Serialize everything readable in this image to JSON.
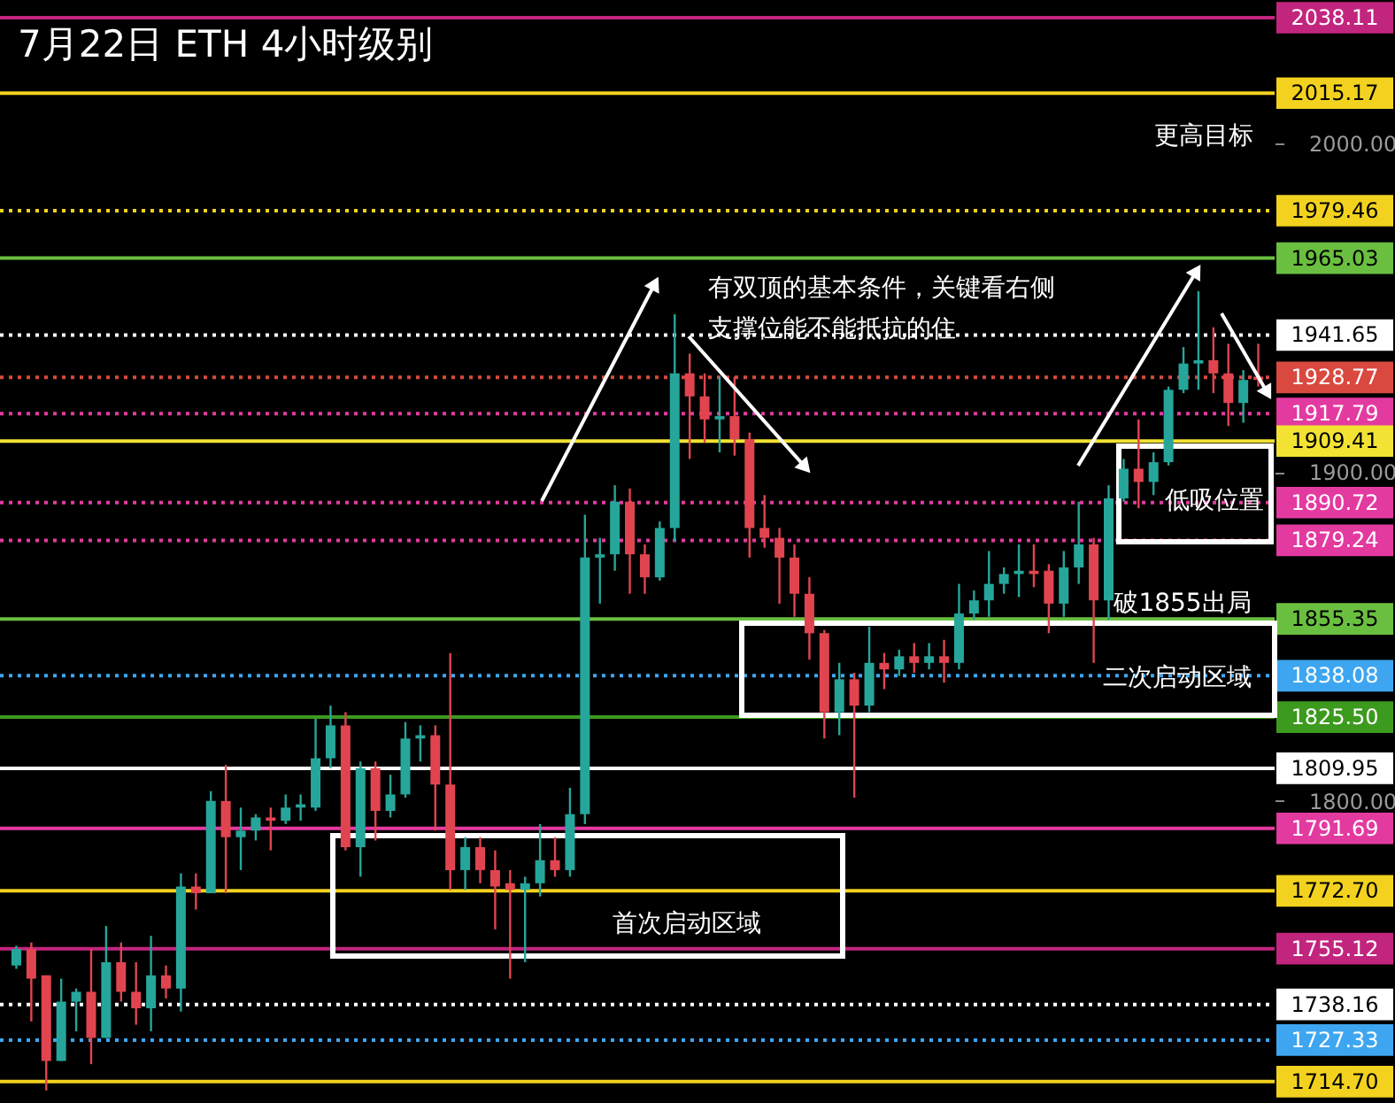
{
  "chart_data": {
    "type": "candlestick",
    "title": "7月22日 ETH 4小时级别",
    "categories": [
      null,
      null,
      null,
      null,
      null,
      null,
      null,
      null,
      null,
      null,
      null,
      null,
      null,
      null,
      null,
      null,
      null,
      null,
      null,
      null,
      null,
      null,
      null,
      null,
      null,
      null,
      null,
      null,
      null,
      null,
      null,
      null,
      null,
      null,
      null,
      null,
      null,
      null,
      null,
      null,
      null,
      null,
      null,
      null,
      null,
      null,
      null,
      null,
      null,
      null,
      null,
      null,
      null,
      null,
      null,
      null,
      null,
      null,
      null,
      null,
      null,
      null,
      null,
      null,
      null,
      null,
      null,
      null,
      null,
      null,
      null,
      null,
      null,
      null,
      null,
      null,
      null,
      null,
      null,
      null,
      null,
      null,
      null,
      null
    ],
    "ohlc": [
      [
        1750,
        1756,
        1749,
        1755
      ],
      [
        1755,
        1757,
        1733,
        1746
      ],
      [
        1747,
        1747,
        1712,
        1721
      ],
      [
        1721,
        1746,
        1721,
        1739
      ],
      [
        1739,
        1743,
        1730,
        1742
      ],
      [
        1742,
        1755,
        1720,
        1728
      ],
      [
        1728,
        1762,
        1728,
        1751
      ],
      [
        1751,
        1757,
        1739,
        1742
      ],
      [
        1742,
        1751,
        1732,
        1737
      ],
      [
        1737,
        1759,
        1730,
        1747
      ],
      [
        1747,
        1750,
        1740,
        1743
      ],
      [
        1743,
        1778,
        1736,
        1774
      ],
      [
        1774,
        1778,
        1767,
        1772
      ],
      [
        1772,
        1803,
        1772,
        1800
      ],
      [
        1800,
        1811,
        1772,
        1789
      ],
      [
        1789,
        1798,
        1779,
        1791
      ],
      [
        1791,
        1796,
        1788,
        1795
      ],
      [
        1795,
        1798,
        1785,
        1794
      ],
      [
        1794,
        1802,
        1793,
        1798
      ],
      [
        1798,
        1802,
        1794,
        1799
      ],
      [
        1798,
        1825,
        1797,
        1813
      ],
      [
        1813,
        1829,
        1810,
        1823
      ],
      [
        1823,
        1827,
        1785,
        1786
      ],
      [
        1786,
        1812,
        1777,
        1810
      ],
      [
        1810,
        1812,
        1788,
        1797
      ],
      [
        1797,
        1808,
        1795,
        1802
      ],
      [
        1802,
        1824,
        1801,
        1819
      ],
      [
        1819,
        1823,
        1812,
        1820
      ],
      [
        1820,
        1823,
        1791,
        1805
      ],
      [
        1805,
        1845,
        1773,
        1779
      ],
      [
        1779,
        1789,
        1773,
        1786
      ],
      [
        1786,
        1789,
        1775,
        1779
      ],
      [
        1779,
        1785,
        1761,
        1774
      ],
      [
        1775,
        1779,
        1746,
        1773
      ],
      [
        1773,
        1777,
        1751,
        1775
      ],
      [
        1775,
        1793,
        1771,
        1782
      ],
      [
        1782,
        1789,
        1777,
        1779
      ],
      [
        1779,
        1804,
        1777,
        1796
      ],
      [
        1796,
        1887,
        1793,
        1874
      ],
      [
        1874,
        1880,
        1860,
        1875
      ],
      [
        1875,
        1896,
        1870,
        1891
      ],
      [
        1891,
        1895,
        1863,
        1875
      ],
      [
        1875,
        1878,
        1863,
        1868
      ],
      [
        1868,
        1885,
        1867,
        1883
      ],
      [
        1883,
        1948,
        1879,
        1930
      ],
      [
        1930,
        1936,
        1904,
        1923
      ],
      [
        1923,
        1930,
        1909,
        1916
      ],
      [
        1916,
        1929,
        1906,
        1917
      ],
      [
        1917,
        1929,
        1905,
        1910
      ],
      [
        1910,
        1912,
        1874,
        1883
      ],
      [
        1883,
        1893,
        1877,
        1880
      ],
      [
        1880,
        1883,
        1860,
        1874
      ],
      [
        1874,
        1878,
        1856,
        1863
      ],
      [
        1863,
        1868,
        1843,
        1851
      ],
      [
        1851,
        1852,
        1819,
        1827
      ],
      [
        1827,
        1842,
        1820,
        1837
      ],
      [
        1837,
        1839,
        1801,
        1829
      ],
      [
        1829,
        1853,
        1827,
        1842
      ],
      [
        1842,
        1845,
        1834,
        1840
      ],
      [
        1840,
        1846,
        1838,
        1844
      ],
      [
        1844,
        1848,
        1839,
        1842
      ],
      [
        1842,
        1848,
        1840,
        1844
      ],
      [
        1844,
        1849,
        1836,
        1842
      ],
      [
        1842,
        1866,
        1840,
        1857
      ],
      [
        1857,
        1864,
        1855,
        1861
      ],
      [
        1861,
        1876,
        1856,
        1866
      ],
      [
        1866,
        1871,
        1863,
        1869
      ],
      [
        1869,
        1878,
        1862,
        1870
      ],
      [
        1870,
        1878,
        1865,
        1869
      ],
      [
        1870,
        1872,
        1851,
        1860
      ],
      [
        1860,
        1876,
        1856,
        1871
      ],
      [
        1871,
        1891,
        1866,
        1878
      ],
      [
        1878,
        1880,
        1842,
        1861
      ],
      [
        1861,
        1896,
        1855,
        1892
      ],
      [
        1892,
        1904,
        1891,
        1901
      ],
      [
        1901,
        1916,
        1889,
        1897
      ],
      [
        1897,
        1906,
        1893,
        1903
      ],
      [
        1903,
        1926,
        1902,
        1925
      ],
      [
        1925,
        1938,
        1924,
        1933
      ],
      [
        1933,
        1955,
        1925,
        1934
      ],
      [
        1934,
        1944,
        1924,
        1930
      ],
      [
        1930,
        1939,
        1914,
        1921
      ],
      [
        1921,
        1931,
        1915,
        1928
      ],
      [
        1929,
        1939,
        1926,
        1928
      ]
    ],
    "ylim": [
      1708.2,
      2043.5
    ],
    "yticks": [
      {
        "value": 1800,
        "label": "1800.00"
      },
      {
        "value": 1900,
        "label": "1900.00"
      },
      {
        "value": 2000,
        "label": "2000.00"
      }
    ],
    "ref_lines": [
      {
        "axis": "y",
        "value": 2038.11,
        "label": "2038.11",
        "color": "#c2257e",
        "line_style": "solid"
      },
      {
        "axis": "y",
        "value": 2015.17,
        "label": "2015.17",
        "color": "#f2d21f",
        "line_style": "solid"
      },
      {
        "axis": "y",
        "value": 1979.46,
        "label": "1979.46",
        "color": "#f2d21f",
        "line_style": "dotted"
      },
      {
        "axis": "y",
        "value": 1965.03,
        "label": "1965.03",
        "color": "#6abf40",
        "line_style": "solid"
      },
      {
        "axis": "y",
        "value": 1941.65,
        "label": "1941.65",
        "color": "#ffffff",
        "line_style": "dotted"
      },
      {
        "axis": "y",
        "value": 1928.77,
        "label": "1928.77",
        "color": "#d9493f",
        "line_style": "dotted"
      },
      {
        "axis": "y",
        "value": 1917.79,
        "label": "1917.79",
        "color": "#e33aa0",
        "line_style": "dotted"
      },
      {
        "axis": "y",
        "value": 1909.41,
        "label": "1909.41",
        "color": "#f2e233",
        "line_style": "solid"
      },
      {
        "axis": "y",
        "value": 1890.72,
        "label": "1890.72",
        "color": "#e33aa0",
        "line_style": "dotted"
      },
      {
        "axis": "y",
        "value": 1879.24,
        "label": "1879.24",
        "color": "#e33aa0",
        "line_style": "dotted"
      },
      {
        "axis": "y",
        "value": 1855.35,
        "label": "1855.35",
        "color": "#6abf40",
        "line_style": "solid"
      },
      {
        "axis": "y",
        "value": 1838.08,
        "label": "1838.08",
        "color": "#3ea6f0",
        "line_style": "dotted"
      },
      {
        "axis": "y",
        "value": 1825.5,
        "label": "1825.50",
        "color": "#3c9a1e",
        "line_style": "solid"
      },
      {
        "axis": "y",
        "value": 1809.95,
        "label": "1809.95",
        "color": "#ffffff",
        "line_style": "solid"
      },
      {
        "axis": "y",
        "value": 1791.69,
        "label": "1791.69",
        "color": "#e33aa0",
        "line_style": "solid"
      },
      {
        "axis": "y",
        "value": 1772.7,
        "label": "1772.70",
        "color": "#f2d21f",
        "line_style": "solid"
      },
      {
        "axis": "y",
        "value": 1755.12,
        "label": "1755.12",
        "color": "#c2257e",
        "line_style": "solid"
      },
      {
        "axis": "y",
        "value": 1738.16,
        "label": "1738.16",
        "color": "#ffffff",
        "line_style": "dotted"
      },
      {
        "axis": "y",
        "value": 1727.33,
        "label": "1727.33",
        "color": "#3ea6f0",
        "line_style": "dotted"
      },
      {
        "axis": "y",
        "value": 1714.7,
        "label": "1714.70",
        "color": "#f2d21f",
        "line_style": "solid"
      }
    ],
    "annotations": [
      "更高目标",
      "有双顶的基本条件，关键看右侧",
      "支撑位能不能抵抗的住",
      "低吸位置",
      "破1855出局",
      "二次启动区域",
      "首次启动区域"
    ],
    "grid": false
  }
}
